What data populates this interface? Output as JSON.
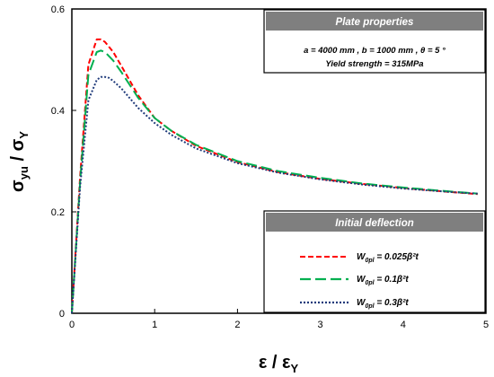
{
  "chart_data": {
    "type": "line",
    "title": "",
    "xlabel": "ε / ε_Y",
    "ylabel": "σ_yu / σ_Y",
    "xlim": [
      0,
      5
    ],
    "ylim": [
      0,
      0.6
    ],
    "xticks": [
      "0",
      "1",
      "2",
      "3",
      "4",
      "5"
    ],
    "yticks": [
      "0",
      "0.2",
      "0.4",
      "0.6"
    ],
    "grid": false,
    "series": [
      {
        "name": "W0pl = 0.025β²t",
        "color": "#ff0000",
        "dash": "dashed",
        "x": [
          0,
          0.1,
          0.2,
          0.3,
          0.35,
          0.4,
          0.5,
          0.6,
          0.8,
          1.0,
          1.2,
          1.5,
          2.0,
          2.5,
          3.0,
          3.5,
          4.0,
          4.5,
          4.9
        ],
        "y": [
          0,
          0.27,
          0.49,
          0.54,
          0.54,
          0.535,
          0.515,
          0.487,
          0.43,
          0.385,
          0.36,
          0.33,
          0.298,
          0.278,
          0.265,
          0.255,
          0.247,
          0.24,
          0.235
        ]
      },
      {
        "name": "W0pl = 0.1β²t",
        "color": "#00b050",
        "dash": "long-dashed",
        "x": [
          0,
          0.1,
          0.2,
          0.3,
          0.35,
          0.4,
          0.5,
          0.6,
          0.8,
          1.0,
          1.2,
          1.5,
          2.0,
          2.5,
          3.0,
          3.5,
          4.0,
          4.5,
          4.9
        ],
        "y": [
          0,
          0.26,
          0.47,
          0.515,
          0.518,
          0.515,
          0.498,
          0.475,
          0.425,
          0.385,
          0.36,
          0.332,
          0.3,
          0.28,
          0.267,
          0.256,
          0.248,
          0.241,
          0.236
        ]
      },
      {
        "name": "W0pl = 0.3β²t",
        "color": "#1f3a7a",
        "dash": "dotted",
        "x": [
          0,
          0.1,
          0.2,
          0.3,
          0.35,
          0.4,
          0.45,
          0.5,
          0.6,
          0.8,
          1.0,
          1.2,
          1.5,
          2.0,
          2.5,
          3.0,
          3.5,
          4.0,
          4.5,
          4.9
        ],
        "y": [
          0,
          0.25,
          0.42,
          0.46,
          0.466,
          0.466,
          0.464,
          0.458,
          0.443,
          0.405,
          0.375,
          0.352,
          0.325,
          0.296,
          0.277,
          0.264,
          0.254,
          0.246,
          0.24,
          0.236
        ]
      }
    ]
  },
  "properties_box": {
    "title": "Plate properties",
    "line1": "a = 4000 mm  ,  b = 1000 mm  ,  θ = 5 °",
    "line2": "Yield strength = 315MPa"
  },
  "legend_box": {
    "title": "Initial deflection",
    "entries": [
      {
        "w": "W",
        "sub": "0pl",
        "rest": " = 0.025β²t"
      },
      {
        "w": "W",
        "sub": "0pl",
        "rest": " = 0.1β²t"
      },
      {
        "w": "W",
        "sub": "0pl",
        "rest": " = 0.3β²t"
      }
    ]
  },
  "colors": {
    "box_header": "#7f7f7f",
    "series_red": "#ff0000",
    "series_green": "#00b050",
    "series_blue": "#1f3a7a"
  }
}
